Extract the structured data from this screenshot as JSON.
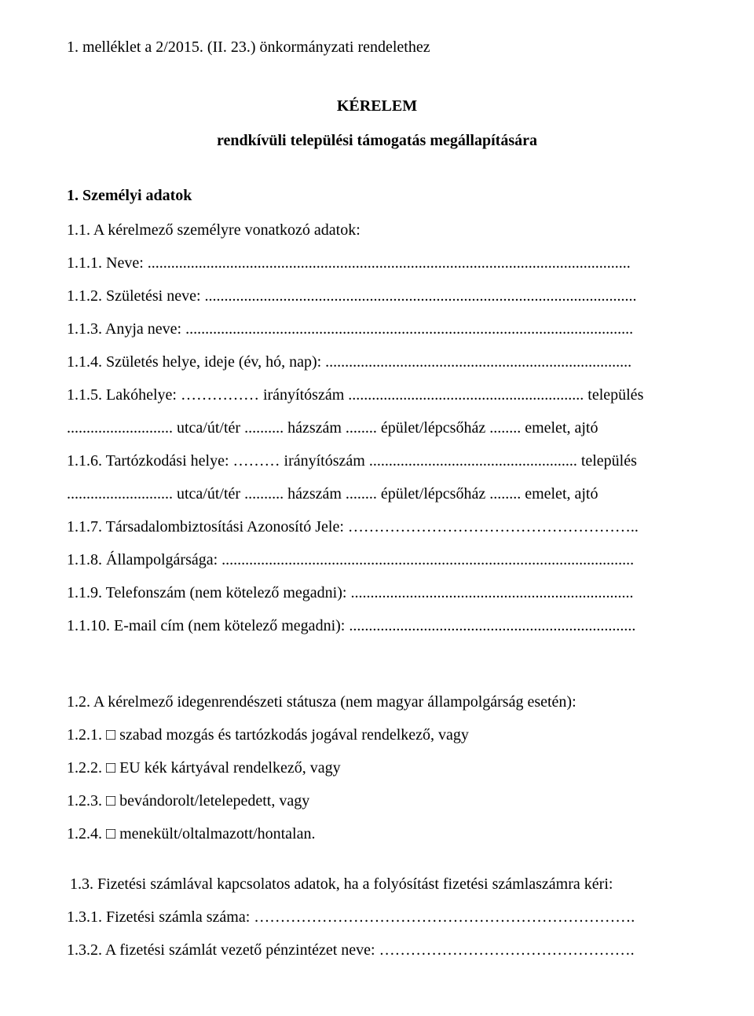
{
  "header": "1.  melléklet a 2/2015. (II. 23.) önkormányzati rendelethez",
  "title": "KÉRELEM",
  "subtitle": "rendkívüli települési támogatás megállapítására",
  "section1": "1. Személyi adatok",
  "l_1_1": "1.1. A kérelmező személyre vonatkozó adatok:",
  "l_1_1_1": "1.1.1. Neve: ...........................................................................................................................",
  "l_1_1_2": "1.1.2. Születési neve: ..............................................................................................................",
  "l_1_1_3": "1.1.3. Anyja neve: ..................................................................................................................",
  "l_1_1_4": "1.1.4. Születés helye, ideje (év, hó, nap): ..............................................................................",
  "l_1_1_5": "1.1.5. Lakóhelye: …………… irányítószám ............................................................ település",
  "l_addr1": "........................... utca/út/tér .......... házszám ........ épület/lépcsőház ........ emelet, ajtó",
  "l_1_1_6": "1.1.6. Tartózkodási helye: ……… irányítószám ..................................................... település",
  "l_addr2": "........................... utca/út/tér .......... házszám ........ épület/lépcsőház ........ emelet, ajtó",
  "l_1_1_7": "1.1.7. Társadalombiztosítási Azonosító Jele: ………………………………………………..",
  "l_1_1_8": "1.1.8. Állampolgársága: .........................................................................................................",
  "l_1_1_9": "1.1.9. Telefonszám (nem kötelező megadni): ........................................................................",
  "l_1_1_10": "1.1.10. E-mail cím (nem kötelező megadni): .........................................................................",
  "l_1_2": "1.2. A kérelmező idegenrendészeti státusza (nem magyar állampolgárság esetén):",
  "l_1_2_1": "1.2.1. □  szabad mozgás és tartózkodás jogával rendelkező, vagy",
  "l_1_2_2": "1.2.2. □ EU kék kártyával rendelkező, vagy",
  "l_1_2_3": "1.2.3. □  bevándorolt/letelepedett, vagy",
  "l_1_2_4": "1.2.4. □  menekült/oltalmazott/hontalan.",
  "l_1_3": "1.3. Fizetési számlával kapcsolatos adatok, ha a folyósítást fizetési számlaszámra kéri:",
  "l_1_3_1": "1.3.1. Fizetési számla száma: ……………………………………………………………….",
  "l_1_3_2": "1.3.2. A fizetési számlát vezető pénzintézet neve: …………………………………………."
}
